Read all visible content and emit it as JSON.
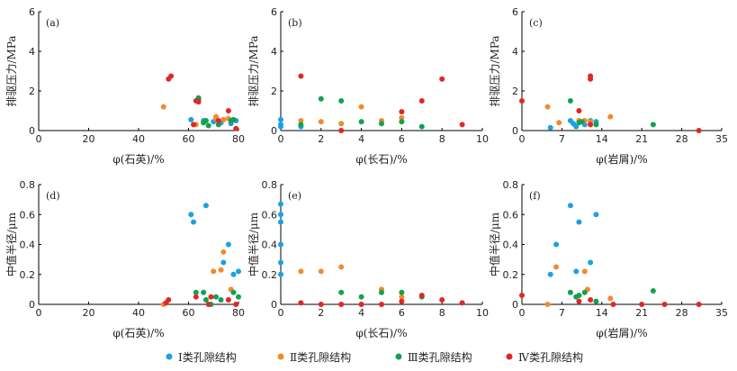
{
  "legend": [
    {
      "name": "Ⅰ类孔隙结构",
      "color": "#1ba1e2"
    },
    {
      "name": "Ⅱ类孔隙结构",
      "color": "#f28a2c"
    },
    {
      "name": "Ⅲ类孔隙结构",
      "color": "#12a150"
    },
    {
      "name": "Ⅳ类孔隙结构",
      "color": "#e02727"
    }
  ],
  "chart_data": [
    {
      "type": "scatter",
      "label": "(a)",
      "xlabel": "φ(石英)/%",
      "ylabel": "排驱压力/MPa",
      "xlim": [
        0,
        80
      ],
      "ylim": [
        0,
        6
      ],
      "xticks": [
        0,
        20,
        40,
        60,
        80
      ],
      "yticks": [
        0,
        2,
        4,
        6
      ],
      "xtick_labels": [
        "0",
        "20",
        "40",
        "60",
        "80"
      ],
      "ytick_labels": [
        "0",
        "2",
        "4",
        "6"
      ],
      "series": [
        {
          "name": "Ⅰ类孔隙结构",
          "points": [
            [
              61,
              0.55
            ],
            [
              66,
              0.5
            ],
            [
              70,
              0.45
            ],
            [
              73,
              0.4
            ],
            [
              77,
              0.35
            ],
            [
              79,
              0.5
            ]
          ]
        },
        {
          "name": "Ⅱ类孔隙结构",
          "points": [
            [
              50,
              1.2
            ],
            [
              63,
              0.3
            ],
            [
              71,
              0.6
            ],
            [
              71,
              0.7
            ],
            [
              74,
              0.55
            ],
            [
              76,
              0.6
            ]
          ]
        },
        {
          "name": "Ⅲ类孔隙结构",
          "points": [
            [
              64,
              1.55
            ],
            [
              64,
              1.65
            ],
            [
              66,
              0.4
            ],
            [
              67,
              0.5
            ],
            [
              68,
              0.25
            ],
            [
              72,
              0.3
            ],
            [
              77,
              0.5
            ],
            [
              78,
              0.55
            ]
          ]
        },
        {
          "name": "Ⅳ类孔隙结构",
          "points": [
            [
              52,
              2.6
            ],
            [
              53,
              2.75
            ],
            [
              62,
              0.3
            ],
            [
              63,
              1.5
            ],
            [
              64,
              1.45
            ],
            [
              72,
              0.5
            ],
            [
              76,
              1.0
            ],
            [
              79,
              0.1
            ]
          ]
        }
      ]
    },
    {
      "type": "scatter",
      "label": "(b)",
      "xlabel": "φ(长石)/%",
      "ylabel": "排驱压力/MPa",
      "xlim": [
        0,
        10
      ],
      "ylim": [
        0,
        6
      ],
      "xticks": [
        0,
        2,
        4,
        6,
        8,
        10
      ],
      "yticks": [
        0,
        2,
        4,
        6
      ],
      "xtick_labels": [
        "0",
        "2",
        "4",
        "6",
        "8",
        "10"
      ],
      "ytick_labels": [
        "0",
        "2",
        "4",
        "6"
      ],
      "series": [
        {
          "name": "Ⅰ类孔隙结构",
          "points": [
            [
              0,
              0.2
            ],
            [
              0,
              0.3
            ],
            [
              0,
              0.55
            ],
            [
              1,
              0.2
            ]
          ]
        },
        {
          "name": "Ⅱ类孔隙结构",
          "points": [
            [
              1,
              0.5
            ],
            [
              2,
              0.45
            ],
            [
              3,
              0.35
            ],
            [
              4,
              1.2
            ],
            [
              5,
              0.5
            ],
            [
              6,
              0.65
            ]
          ]
        },
        {
          "name": "Ⅲ类孔隙结构",
          "points": [
            [
              1,
              0.3
            ],
            [
              2,
              1.6
            ],
            [
              3,
              1.5
            ],
            [
              4,
              0.45
            ],
            [
              5,
              0.35
            ],
            [
              6,
              0.45
            ],
            [
              7,
              0.2
            ]
          ]
        },
        {
          "name": "Ⅳ类孔隙结构",
          "points": [
            [
              1,
              2.75
            ],
            [
              3,
              0.0
            ],
            [
              6,
              0.95
            ],
            [
              7,
              1.5
            ],
            [
              8,
              2.6
            ],
            [
              9,
              0.3
            ]
          ]
        }
      ]
    },
    {
      "type": "scatter",
      "label": "(c)",
      "xlabel": "φ(岩屑)/%",
      "ylabel": "排驱压力/MPa",
      "xlim": [
        0,
        35
      ],
      "ylim": [
        0,
        6
      ],
      "xticks": [
        0,
        7,
        14,
        21,
        28,
        35
      ],
      "yticks": [
        0,
        2,
        4,
        6
      ],
      "xtick_labels": [
        "0",
        "7",
        "14",
        "21",
        "28",
        "35"
      ],
      "ytick_labels": [
        "0",
        "2",
        "4",
        "6"
      ],
      "series": [
        {
          "name": "Ⅰ类孔隙结构",
          "points": [
            [
              5,
              0.15
            ],
            [
              8.5,
              0.5
            ],
            [
              9,
              0.35
            ],
            [
              9.5,
              0.2
            ],
            [
              10,
              0.45
            ],
            [
              11,
              0.3
            ],
            [
              12,
              0.5
            ],
            [
              13,
              0.45
            ]
          ]
        },
        {
          "name": "Ⅱ类孔隙结构",
          "points": [
            [
              4.5,
              1.2
            ],
            [
              6.5,
              0.4
            ],
            [
              10,
              0.5
            ],
            [
              11,
              0.5
            ],
            [
              12,
              0.45
            ],
            [
              15.5,
              0.7
            ]
          ]
        },
        {
          "name": "Ⅲ类孔隙结构",
          "points": [
            [
              8.5,
              1.5
            ],
            [
              10,
              0.4
            ],
            [
              10.5,
              0.45
            ],
            [
              13,
              0.3
            ],
            [
              23,
              0.3
            ]
          ]
        },
        {
          "name": "Ⅳ类孔隙结构",
          "points": [
            [
              0,
              1.5
            ],
            [
              10,
              1.0
            ],
            [
              12,
              2.6
            ],
            [
              12,
              2.75
            ],
            [
              12,
              0.3
            ],
            [
              31,
              0.0
            ]
          ]
        }
      ]
    },
    {
      "type": "scatter",
      "label": "(d)",
      "xlabel": "φ(石英)/%",
      "ylabel": "中值半径/μm",
      "xlim": [
        0,
        80
      ],
      "ylim": [
        0,
        0.8
      ],
      "xticks": [
        0,
        20,
        40,
        60,
        80
      ],
      "yticks": [
        0,
        0.2,
        0.4,
        0.6,
        0.8
      ],
      "xtick_labels": [
        "0",
        "20",
        "40",
        "60",
        "80"
      ],
      "ytick_labels": [
        "0",
        "0.2",
        "0.4",
        "0.6",
        "0.8"
      ],
      "series": [
        {
          "name": "Ⅰ类孔隙结构",
          "points": [
            [
              61,
              0.6
            ],
            [
              62,
              0.55
            ],
            [
              67,
              0.66
            ],
            [
              74,
              0.28
            ],
            [
              76,
              0.4
            ],
            [
              78,
              0.2
            ],
            [
              80,
              0.22
            ]
          ]
        },
        {
          "name": "Ⅱ类孔隙结构",
          "points": [
            [
              50,
              0.0
            ],
            [
              70,
              0.22
            ],
            [
              73,
              0.23
            ],
            [
              74,
              0.35
            ],
            [
              77,
              0.1
            ]
          ]
        },
        {
          "name": "Ⅲ类孔隙结构",
          "points": [
            [
              63,
              0.08
            ],
            [
              66,
              0.08
            ],
            [
              67,
              0.03
            ],
            [
              69,
              0.0
            ],
            [
              71,
              0.05
            ],
            [
              73,
              0.03
            ],
            [
              78,
              0.08
            ],
            [
              80,
              0.05
            ]
          ]
        },
        {
          "name": "Ⅳ类孔隙结构",
          "points": [
            [
              51,
              0.01
            ],
            [
              52,
              0.03
            ],
            [
              63,
              0.05
            ],
            [
              68,
              0.0
            ],
            [
              69,
              0.05
            ],
            [
              76,
              0.03
            ],
            [
              79,
              0.0
            ]
          ]
        }
      ]
    },
    {
      "type": "scatter",
      "label": "(e)",
      "xlabel": "φ(长石)/%",
      "ylabel": "中值半径/μm",
      "xlim": [
        0,
        10
      ],
      "ylim": [
        0,
        0.8
      ],
      "xticks": [
        0,
        2,
        4,
        6,
        8,
        10
      ],
      "yticks": [
        0,
        0.2,
        0.4,
        0.6,
        0.8
      ],
      "xtick_labels": [
        "0",
        "2",
        "4",
        "6",
        "8",
        "10"
      ],
      "ytick_labels": [
        "0",
        "0.2",
        "0.4",
        "0.6",
        "0.8"
      ],
      "series": [
        {
          "name": "Ⅰ类孔隙结构",
          "points": [
            [
              0,
              0.67
            ],
            [
              0,
              0.6
            ],
            [
              0,
              0.55
            ],
            [
              0,
              0.4
            ],
            [
              0,
              0.28
            ],
            [
              0,
              0.2
            ]
          ]
        },
        {
          "name": "Ⅱ类孔隙结构",
          "points": [
            [
              1,
              0.22
            ],
            [
              2,
              0.22
            ],
            [
              3,
              0.25
            ],
            [
              5,
              0.1
            ],
            [
              6,
              0.05
            ]
          ]
        },
        {
          "name": "Ⅲ类孔隙结构",
          "points": [
            [
              3,
              0.08
            ],
            [
              4,
              0.05
            ],
            [
              5,
              0.08
            ],
            [
              6,
              0.08
            ],
            [
              7,
              0.05
            ]
          ]
        },
        {
          "name": "Ⅳ类孔隙结构",
          "points": [
            [
              1,
              0.01
            ],
            [
              2,
              0.0
            ],
            [
              3,
              0.0
            ],
            [
              4,
              0.0
            ],
            [
              5,
              0.0
            ],
            [
              6,
              0.02
            ],
            [
              7,
              0.06
            ],
            [
              8,
              0.03
            ],
            [
              9,
              0.01
            ]
          ]
        }
      ]
    },
    {
      "type": "scatter",
      "label": "(f)",
      "xlabel": "φ(岩屑)/%",
      "ylabel": "中值半径/μm",
      "xlim": [
        0,
        35
      ],
      "ylim": [
        0,
        0.8
      ],
      "xticks": [
        0,
        7,
        14,
        21,
        28,
        35
      ],
      "yticks": [
        0,
        0.2,
        0.4,
        0.6,
        0.8
      ],
      "xtick_labels": [
        "0",
        "7",
        "14",
        "21",
        "28",
        "35"
      ],
      "ytick_labels": [
        "0",
        "0.2",
        "0.4",
        "0.6",
        "0.8"
      ],
      "series": [
        {
          "name": "Ⅰ类孔隙结构",
          "points": [
            [
              5,
              0.2
            ],
            [
              6,
              0.4
            ],
            [
              8.5,
              0.66
            ],
            [
              9.5,
              0.22
            ],
            [
              10,
              0.55
            ],
            [
              12,
              0.28
            ],
            [
              13,
              0.6
            ]
          ]
        },
        {
          "name": "Ⅱ类孔隙结构",
          "points": [
            [
              4.5,
              0.0
            ],
            [
              6,
              0.25
            ],
            [
              11,
              0.22
            ],
            [
              11.5,
              0.1
            ],
            [
              15.5,
              0.04
            ]
          ]
        },
        {
          "name": "Ⅲ类孔隙结构",
          "points": [
            [
              8.5,
              0.08
            ],
            [
              9.5,
              0.05
            ],
            [
              10,
              0.06
            ],
            [
              11,
              0.08
            ],
            [
              13,
              0.02
            ],
            [
              23,
              0.09
            ]
          ]
        },
        {
          "name": "Ⅳ类孔隙结构",
          "points": [
            [
              0,
              0.06
            ],
            [
              10,
              0.02
            ],
            [
              12,
              0.03
            ],
            [
              16,
              0.0
            ],
            [
              21,
              0.0
            ],
            [
              25,
              0.0
            ],
            [
              31,
              0.0
            ]
          ]
        }
      ]
    }
  ]
}
